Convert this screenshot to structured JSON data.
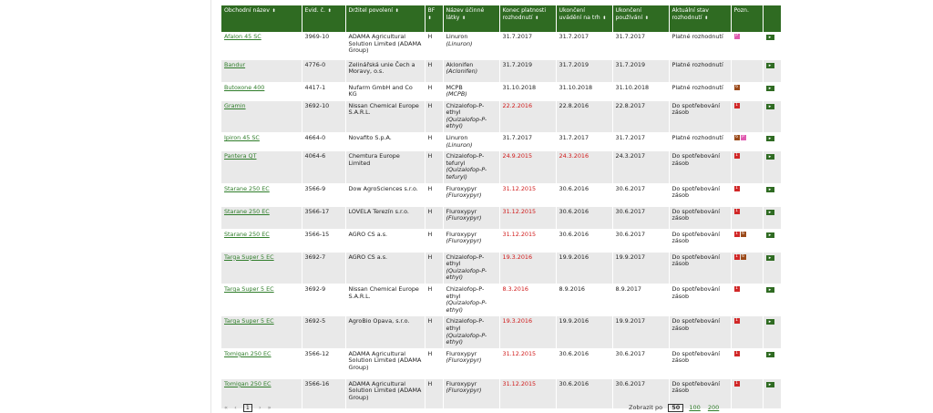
{
  "table": {
    "headers": [
      "Obchodní název",
      "Evid. č.",
      "Držitel povolení",
      "BF",
      "Název účinné látky",
      "Konec platnosti rozhodnutí",
      "Ukončení uvádění na trh",
      "Ukončení používání",
      "Aktuální stav rozhodnutí",
      "Pozn.",
      ""
    ],
    "sortable": [
      true,
      true,
      true,
      true,
      true,
      true,
      true,
      true,
      true,
      false,
      false
    ],
    "rows": [
      {
        "name": "Afalon 45 SC",
        "evid": "3969-10",
        "holder": "ADAMA Agricultural Solution Limited (ADAMA Group)",
        "bf": "H",
        "substance": "Linuron",
        "substance_latin": "(Linuron)",
        "end": "31.7.2017",
        "end_red": false,
        "market": "31.7.2017",
        "market_red": false,
        "use": "31.7.2017",
        "status": "Platné rozhodnutí",
        "badges": [
          {
            "t": "P",
            "c": "pink"
          }
        ]
      },
      {
        "name": "Bandur",
        "evid": "4776-0",
        "holder": "Zelinářská unie Čech a Moravy, o.s.",
        "bf": "H",
        "substance": "Aklonifen",
        "substance_latin": "(Aclonifen)",
        "end": "31.7.2019",
        "end_red": false,
        "market": "31.7.2019",
        "market_red": false,
        "use": "31.7.2019",
        "status": "Platné rozhodnutí",
        "badges": []
      },
      {
        "name": "Butoxone 400",
        "evid": "4417-1",
        "holder": "Nufarm GmbH and Co KG",
        "bf": "H",
        "substance": "MCPB",
        "substance_latin": "(MCPB)",
        "end": "31.10.2018",
        "end_red": false,
        "market": "31.10.2018",
        "market_red": false,
        "use": "31.10.2018",
        "status": "Platné rozhodnutí",
        "badges": [
          {
            "t": "6",
            "c": "brown"
          }
        ]
      },
      {
        "name": "Gramin",
        "evid": "3692-10",
        "holder": "Nissan Chemical Europe S.A.R.L.",
        "bf": "H",
        "substance": "Chizalofop-P-ethyl",
        "substance_latin": "(Quizalofop-P-ethyl)",
        "end": "22.2.2016",
        "end_red": true,
        "market": "22.8.2016",
        "market_red": false,
        "use": "22.8.2017",
        "status": "Do spotřebování zásob",
        "badges": [
          {
            "t": "1",
            "c": "red"
          }
        ]
      },
      {
        "name": "Ipiron 45 SC",
        "evid": "4664-0",
        "holder": "Novafito S.p.A.",
        "bf": "H",
        "substance": "Linuron",
        "substance_latin": "(Linuron)",
        "end": "31.7.2017",
        "end_red": false,
        "market": "31.7.2017",
        "market_red": false,
        "use": "31.7.2017",
        "status": "Platné rozhodnutí",
        "badges": [
          {
            "t": "6",
            "c": "brown"
          },
          {
            "t": "P",
            "c": "pink"
          }
        ]
      },
      {
        "name": "Pantera QT",
        "evid": "4064-6",
        "holder": "Chemtura Europe Limited",
        "bf": "H",
        "substance": "Chizalofop-P-tefuryl",
        "substance_latin": "(Quizalofop-P-tefuryl)",
        "end": "24.9.2015",
        "end_red": true,
        "market": "24.3.2016",
        "market_red": true,
        "use": "24.3.2017",
        "status": "Do spotřebování zásob",
        "badges": [
          {
            "t": "1",
            "c": "red"
          }
        ]
      },
      {
        "name": "Starane 250 EC",
        "evid": "3566-9",
        "holder": "Dow AgroSciences s.r.o.",
        "bf": "H",
        "substance": "Fluroxypyr",
        "substance_latin": "(Fluroxypyr)",
        "end": "31.12.2015",
        "end_red": true,
        "market": "30.6.2016",
        "market_red": false,
        "use": "30.6.2017",
        "status": "Do spotřebování zásob",
        "badges": [
          {
            "t": "1",
            "c": "red"
          }
        ]
      },
      {
        "name": "Starane 250 EC",
        "evid": "3566-17",
        "holder": "LOVELA Terezín s.r.o.",
        "bf": "H",
        "substance": "Fluroxypyr",
        "substance_latin": "(Fluroxypyr)",
        "end": "31.12.2015",
        "end_red": true,
        "market": "30.6.2016",
        "market_red": false,
        "use": "30.6.2017",
        "status": "Do spotřebování zásob",
        "badges": [
          {
            "t": "1",
            "c": "red"
          }
        ]
      },
      {
        "name": "Starane 250 EC",
        "evid": "3566-15",
        "holder": "AGRO CS a.s.",
        "bf": "H",
        "substance": "Fluroxypyr",
        "substance_latin": "(Fluroxypyr)",
        "end": "31.12.2015",
        "end_red": true,
        "market": "30.6.2016",
        "market_red": false,
        "use": "30.6.2017",
        "status": "Do spotřebování zásob",
        "badges": [
          {
            "t": "1",
            "c": "red"
          },
          {
            "t": "6",
            "c": "brown"
          }
        ]
      },
      {
        "name": "Targa Super 5 EC",
        "evid": "3692-7",
        "holder": "AGRO CS a.s.",
        "bf": "H",
        "substance": "Chizalofop-P-ethyl",
        "substance_latin": "(Quizalofop-P-ethyl)",
        "end": "19.3.2016",
        "end_red": true,
        "market": "19.9.2016",
        "market_red": false,
        "use": "19.9.2017",
        "status": "Do spotřebování zásob",
        "badges": [
          {
            "t": "1",
            "c": "red"
          },
          {
            "t": "6",
            "c": "brown"
          }
        ]
      },
      {
        "name": "Targa Super 5 EC",
        "evid": "3692-9",
        "holder": "Nissan Chemical Europe S.A.R.L.",
        "bf": "H",
        "substance": "Chizalofop-P-ethyl",
        "substance_latin": "(Quizalofop-P-ethyl)",
        "end": "8.3.2016",
        "end_red": true,
        "market": "8.9.2016",
        "market_red": false,
        "use": "8.9.2017",
        "status": "Do spotřebování zásob",
        "badges": [
          {
            "t": "1",
            "c": "red"
          }
        ]
      },
      {
        "name": "Targa Super 5 EC",
        "evid": "3692-5",
        "holder": "AgroBio Opava, s.r.o.",
        "bf": "H",
        "substance": "Chizalofop-P-ethyl",
        "substance_latin": "(Quizalofop-P-ethyl)",
        "end": "19.3.2016",
        "end_red": true,
        "market": "19.9.2016",
        "market_red": false,
        "use": "19.9.2017",
        "status": "Do spotřebování zásob",
        "badges": [
          {
            "t": "1",
            "c": "red"
          }
        ]
      },
      {
        "name": "Tomigan 250 EC",
        "evid": "3566-12",
        "holder": "ADAMA Agricultural Solution Limited (ADAMA Group)",
        "bf": "H",
        "substance": "Fluroxypyr",
        "substance_latin": "(Fluroxypyr)",
        "end": "31.12.2015",
        "end_red": true,
        "market": "30.6.2016",
        "market_red": false,
        "use": "30.6.2017",
        "status": "Do spotřebování zásob",
        "badges": [
          {
            "t": "1",
            "c": "red"
          }
        ]
      },
      {
        "name": "Tomigan 250 EC",
        "evid": "3566-16",
        "holder": "ADAMA Agricultural Solution Limited (ADAMA Group)",
        "bf": "H",
        "substance": "Fluroxypyr",
        "substance_latin": "(Fluroxypyr)",
        "end": "31.12.2015",
        "end_red": true,
        "market": "30.6.2016",
        "market_red": false,
        "use": "30.6.2017",
        "status": "Do spotřebování zásob",
        "badges": [
          {
            "t": "1",
            "c": "red"
          }
        ]
      }
    ],
    "detail_icon": "arrow-right-icon"
  },
  "pagination": {
    "first": "«",
    "prev": "‹",
    "current": "1",
    "next": "›",
    "last": "»"
  },
  "per_page": {
    "label": "Zobrazit po",
    "current": "50",
    "options": [
      "100",
      "200"
    ]
  },
  "colors": {
    "header_bg": "#2f6b22",
    "link": "#2f7d2a",
    "expired": "#d01818",
    "row_alt": "#e9e9e9",
    "badge_red": "#d12727",
    "badge_pink": "#e05bb0",
    "badge_brown": "#9b4a1a"
  }
}
